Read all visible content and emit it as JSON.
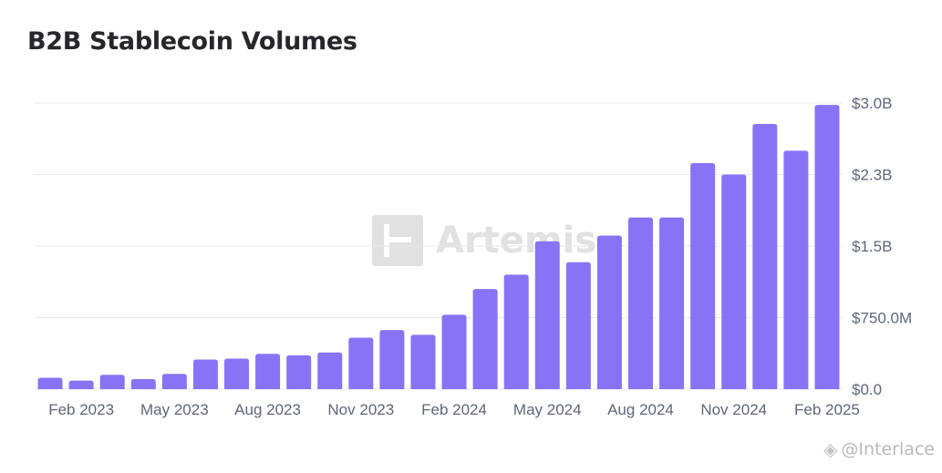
{
  "title": "B2B Stablecoin Volumes",
  "watermark": {
    "icon": "artemis-logo-icon",
    "text": "Artemis"
  },
  "credit": {
    "icon": "binance-diamond-icon",
    "text": "@Interlace"
  },
  "colors": {
    "bar": "#8873f6",
    "grid": "#e6e8ee",
    "tick": "#5e6678",
    "title": "#26262b"
  },
  "chart_data": {
    "type": "bar",
    "title": "B2B Stablecoin Volumes",
    "xlabel": "",
    "ylabel": "",
    "ylim": [
      0,
      3000000000
    ],
    "y_tick_values": [
      0,
      750000000,
      1500000000,
      2250000000,
      3000000000
    ],
    "y_tick_labels": [
      "$0.0",
      "$750.0M",
      "$1.5B",
      "$2.3B",
      "$3.0B"
    ],
    "y_axis_position": "right",
    "grid": true,
    "x_tick_labels": [
      "Feb 2023",
      "May 2023",
      "Aug 2023",
      "Nov 2023",
      "Feb 2024",
      "May 2024",
      "Aug 2024",
      "Nov 2024",
      "Feb 2025"
    ],
    "categories": [
      "Jan 2023",
      "Feb 2023",
      "Mar 2023",
      "Apr 2023",
      "May 2023",
      "Jun 2023",
      "Jul 2023",
      "Aug 2023",
      "Sep 2023",
      "Oct 2023",
      "Nov 2023",
      "Dec 2023",
      "Jan 2024",
      "Feb 2024",
      "Mar 2024",
      "Apr 2024",
      "May 2024",
      "Jun 2024",
      "Jul 2024",
      "Aug 2024",
      "Sep 2024",
      "Oct 2024",
      "Nov 2024",
      "Dec 2024",
      "Jan 2025",
      "Feb 2025"
    ],
    "x_tick_indices": [
      1,
      4,
      7,
      10,
      13,
      16,
      19,
      22,
      25
    ],
    "values": [
      120000000,
      90000000,
      150000000,
      105000000,
      160000000,
      310000000,
      320000000,
      370000000,
      355000000,
      385000000,
      540000000,
      620000000,
      570000000,
      780000000,
      1050000000,
      1200000000,
      1550000000,
      1330000000,
      1610000000,
      1800000000,
      1800000000,
      2370000000,
      2250000000,
      2780000000,
      2500000000,
      2980000000
    ]
  }
}
